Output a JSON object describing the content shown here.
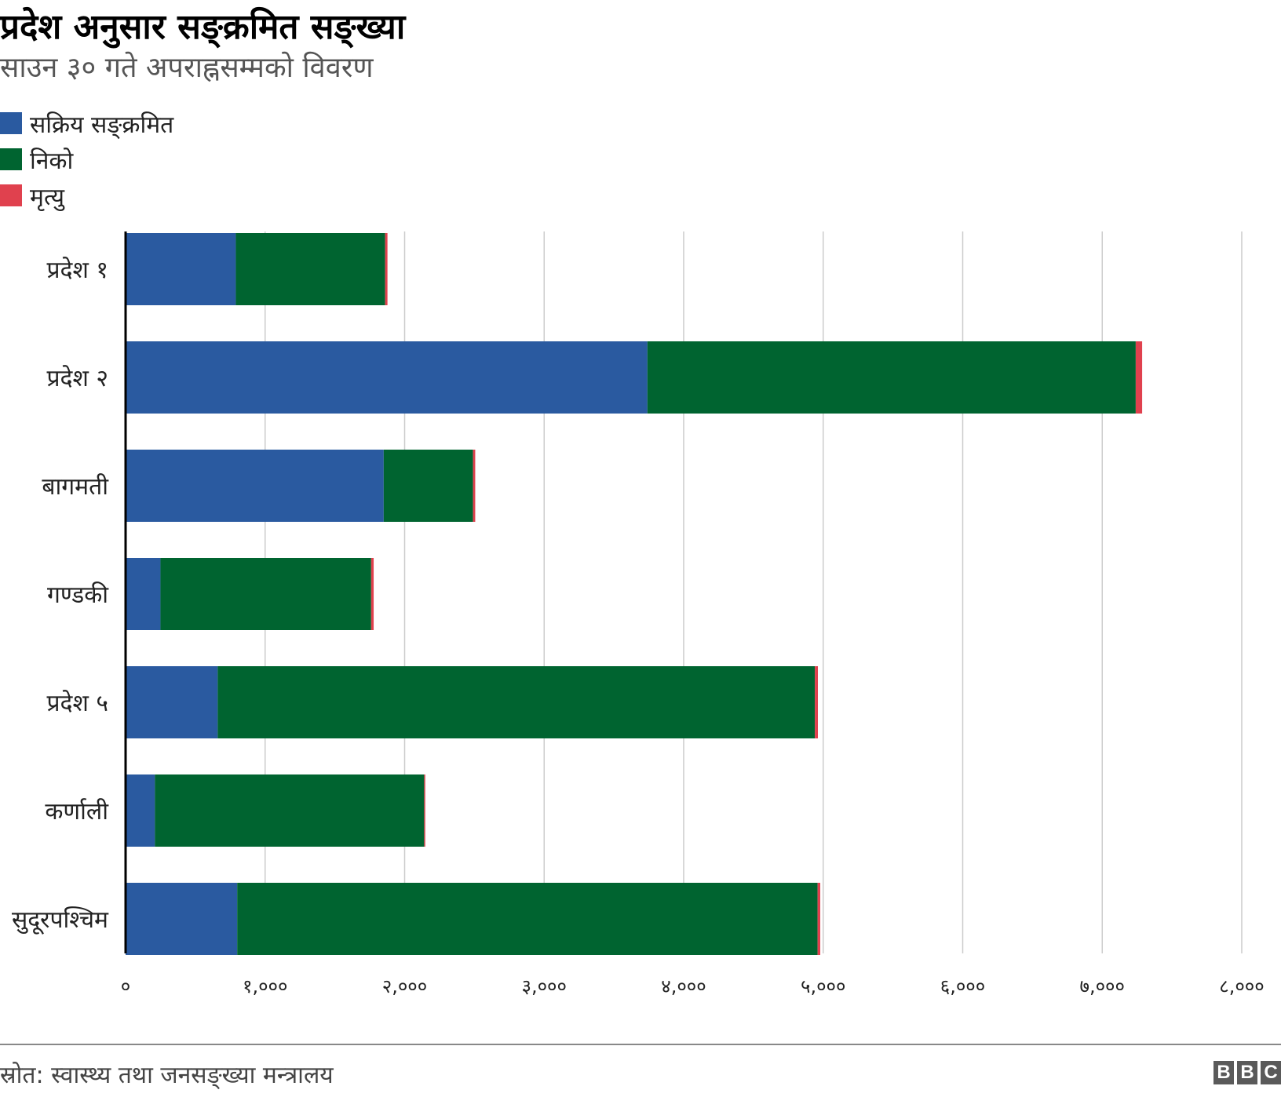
{
  "header": {
    "title": "प्रदेश अनुसार सङ्क्रमित सङ्ख्या",
    "subtitle": "साउन ३० गते अपराह्नसम्मको विवरण"
  },
  "footer": {
    "source": "स्रोत: स्वास्थ्य तथा जनसङ्ख्या मन्त्रालय",
    "logo": [
      "B",
      "B",
      "C"
    ]
  },
  "colors": {
    "active": "#2a5aa0",
    "recovered": "#006430",
    "deaths": "#e0414e",
    "grid": "#cccccc",
    "axis": "#000000"
  },
  "chart_data": {
    "type": "bar",
    "orientation": "horizontal",
    "stacked": true,
    "categories": [
      "प्रदेश १",
      "प्रदेश २",
      "बागमती",
      "गण्डकी",
      "प्रदेश ५",
      "कर्णाली",
      "सुदूरपश्चिम"
    ],
    "series": [
      {
        "name": "सक्रिय सङ्क्रमित",
        "color": "#2a5aa0",
        "values": [
          790,
          3740,
          1850,
          250,
          660,
          210,
          800
        ]
      },
      {
        "name": "निको",
        "color": "#006430",
        "values": [
          1070,
          3500,
          640,
          1510,
          4280,
          1930,
          4160
        ]
      },
      {
        "name": "मृत्यु",
        "color": "#e0414e",
        "values": [
          17,
          46,
          16,
          18,
          22,
          8,
          19
        ]
      }
    ],
    "xlim": [
      0,
      8000
    ],
    "ticks": [
      0,
      1000,
      2000,
      3000,
      4000,
      5000,
      6000,
      7000,
      8000
    ],
    "tick_labels": [
      "०",
      "१,०००",
      "२,०००",
      "३,०००",
      "४,०००",
      "५,०००",
      "६,०००",
      "७,०००",
      "८,०००"
    ],
    "grid": true,
    "legend_position": "top-left"
  }
}
